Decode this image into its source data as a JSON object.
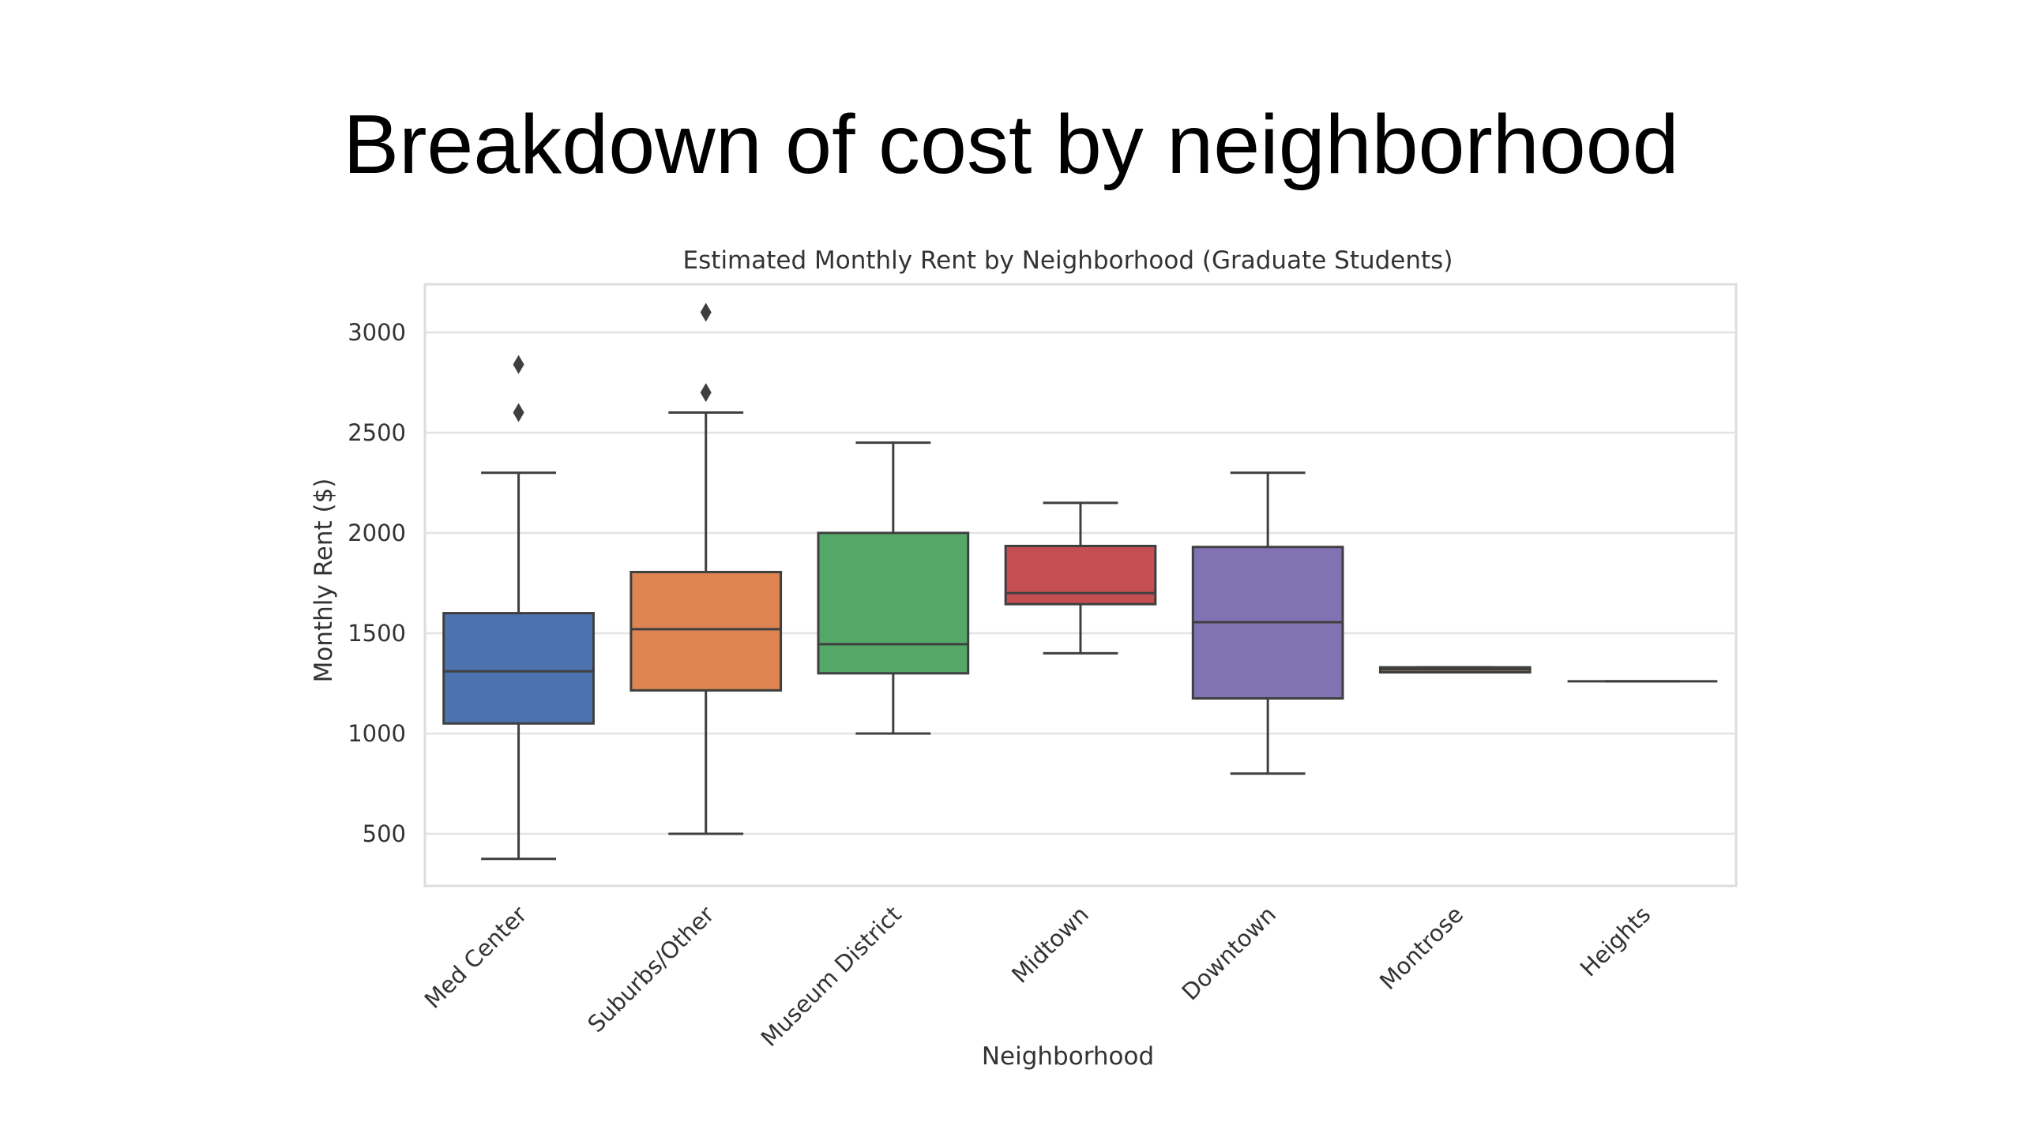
{
  "slide": {
    "title": "Breakdown of cost by neighborhood"
  },
  "chart_data": {
    "type": "box",
    "title": "Estimated Monthly Rent by Neighborhood (Graduate Students)",
    "xlabel": "Neighborhood",
    "ylabel": "Monthly Rent ($)",
    "ylim": [
      240,
      3240
    ],
    "yticks": [
      500,
      1000,
      1500,
      2000,
      2500,
      3000
    ],
    "grid": true,
    "categories": [
      "Med Center",
      "Suburbs/Other",
      "Museum District",
      "Midtown",
      "Downtown",
      "Montrose",
      "Heights"
    ],
    "colors": [
      "#4c72b0",
      "#dd8452",
      "#55a868",
      "#c44e52",
      "#8172b3",
      "#937860",
      "#da8bc3"
    ],
    "boxes": [
      {
        "category": "Med Center",
        "whisker_low": 375,
        "q1": 1050,
        "median": 1310,
        "q3": 1600,
        "whisker_high": 2300,
        "outliers": [
          2600,
          2840
        ]
      },
      {
        "category": "Suburbs/Other",
        "whisker_low": 500,
        "q1": 1215,
        "median": 1520,
        "q3": 1805,
        "whisker_high": 2600,
        "outliers": [
          2700,
          3100
        ]
      },
      {
        "category": "Museum District",
        "whisker_low": 1000,
        "q1": 1300,
        "median": 1445,
        "q3": 2000,
        "whisker_high": 2450,
        "outliers": []
      },
      {
        "category": "Midtown",
        "whisker_low": 1400,
        "q1": 1645,
        "median": 1700,
        "q3": 1935,
        "whisker_high": 2150,
        "outliers": []
      },
      {
        "category": "Downtown",
        "whisker_low": 800,
        "q1": 1175,
        "median": 1555,
        "q3": 1930,
        "whisker_high": 2300,
        "outliers": []
      },
      {
        "category": "Montrose",
        "whisker_low": 1305,
        "q1": 1305,
        "median": 1320,
        "q3": 1330,
        "whisker_high": 1330,
        "outliers": []
      },
      {
        "category": "Heights",
        "whisker_low": 1260,
        "q1": 1260,
        "median": 1260,
        "q3": 1260,
        "whisker_high": 1260,
        "outliers": []
      }
    ]
  }
}
